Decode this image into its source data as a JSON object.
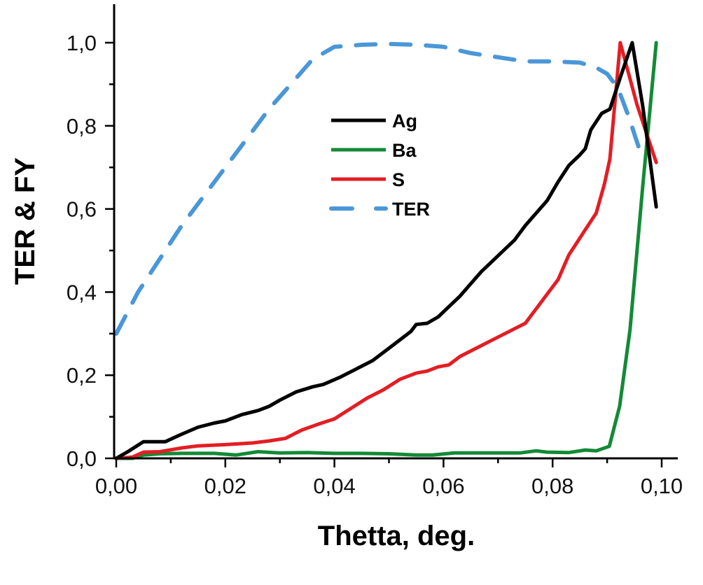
{
  "chart_data": {
    "type": "line",
    "title": "",
    "xlabel": "Thetta, deg.",
    "ylabel": "TER & FY",
    "xlim": [
      0,
      0.103
    ],
    "ylim": [
      0,
      1.093
    ],
    "grid": false,
    "legend_position": "upper-center",
    "x_ticks": [
      0,
      0.02,
      0.04,
      0.06,
      0.08,
      0.1
    ],
    "x_tick_labels": [
      "0,00",
      "0,02",
      "0,04",
      "0,06",
      "0,08",
      "0,10"
    ],
    "x_minor_ticks": [
      0.01,
      0.03,
      0.05,
      0.07,
      0.09
    ],
    "y_ticks": [
      0,
      0.2,
      0.4,
      0.6,
      0.8,
      1.0
    ],
    "y_tick_labels": [
      "0,0",
      "0,2",
      "0,4",
      "0,6",
      "0,8",
      "1,0"
    ],
    "y_minor_ticks": [
      0.1,
      0.3,
      0.5,
      0.7,
      0.9
    ],
    "series": [
      {
        "name": "Ag",
        "color": "#000000",
        "style": "solid",
        "x": [
          0,
          0.002,
          0.005,
          0.009,
          0.012,
          0.015,
          0.018,
          0.02,
          0.023,
          0.026,
          0.028,
          0.03,
          0.033,
          0.036,
          0.038,
          0.041,
          0.044,
          0.047,
          0.05,
          0.052,
          0.054,
          0.055,
          0.057,
          0.059,
          0.061,
          0.063,
          0.065,
          0.067,
          0.069,
          0.071,
          0.073,
          0.075,
          0.077,
          0.079,
          0.081,
          0.083,
          0.085,
          0.086,
          0.087,
          0.089,
          0.0905,
          0.0925,
          0.0946,
          0.0965,
          0.099
        ],
        "values": [
          0,
          0.015,
          0.04,
          0.04,
          0.058,
          0.075,
          0.085,
          0.09,
          0.105,
          0.115,
          0.125,
          0.14,
          0.16,
          0.172,
          0.178,
          0.195,
          0.215,
          0.235,
          0.265,
          0.285,
          0.305,
          0.322,
          0.325,
          0.34,
          0.365,
          0.39,
          0.42,
          0.45,
          0.475,
          0.5,
          0.525,
          0.56,
          0.59,
          0.62,
          0.665,
          0.705,
          0.73,
          0.745,
          0.79,
          0.83,
          0.84,
          0.92,
          1.0,
          0.85,
          0.605
        ]
      },
      {
        "name": "Ba",
        "color": "#138a36",
        "style": "solid",
        "x": [
          0,
          0.003,
          0.005,
          0.008,
          0.012,
          0.018,
          0.022,
          0.026,
          0.03,
          0.035,
          0.04,
          0.045,
          0.05,
          0.055,
          0.058,
          0.062,
          0.066,
          0.07,
          0.074,
          0.077,
          0.079,
          0.083,
          0.086,
          0.088,
          0.0904,
          0.0923,
          0.0942,
          0.0965,
          0.099
        ],
        "values": [
          0,
          0.0,
          0.008,
          0.011,
          0.012,
          0.012,
          0.008,
          0.016,
          0.013,
          0.014,
          0.012,
          0.012,
          0.011,
          0.008,
          0.008,
          0.013,
          0.013,
          0.013,
          0.013,
          0.018,
          0.015,
          0.014,
          0.02,
          0.018,
          0.029,
          0.126,
          0.31,
          0.65,
          1.0
        ]
      },
      {
        "name": "S",
        "color": "#e31e24",
        "style": "solid",
        "x": [
          0,
          0.003,
          0.005,
          0.008,
          0.012,
          0.015,
          0.02,
          0.025,
          0.028,
          0.031,
          0.034,
          0.037,
          0.04,
          0.043,
          0.046,
          0.049,
          0.052,
          0.055,
          0.057,
          0.059,
          0.061,
          0.063,
          0.066,
          0.069,
          0.072,
          0.075,
          0.077,
          0.079,
          0.081,
          0.083,
          0.084,
          0.086,
          0.088,
          0.0895,
          0.0905,
          0.0924,
          0.0955,
          0.099
        ],
        "values": [
          0,
          0.003,
          0.015,
          0.016,
          0.025,
          0.03,
          0.033,
          0.037,
          0.042,
          0.048,
          0.068,
          0.082,
          0.095,
          0.12,
          0.145,
          0.165,
          0.19,
          0.205,
          0.21,
          0.22,
          0.225,
          0.245,
          0.265,
          0.285,
          0.305,
          0.325,
          0.36,
          0.395,
          0.43,
          0.49,
          0.51,
          0.55,
          0.59,
          0.66,
          0.72,
          1.0,
          0.85,
          0.712
        ]
      },
      {
        "name": "TER",
        "color": "#4a97d8",
        "style": "dashed",
        "x": [
          0,
          0.004,
          0.008,
          0.012,
          0.016,
          0.02,
          0.024,
          0.028,
          0.032,
          0.036,
          0.04,
          0.045,
          0.05,
          0.055,
          0.06,
          0.065,
          0.07,
          0.075,
          0.08,
          0.085,
          0.088,
          0.09,
          0.092,
          0.094,
          0.0965
        ],
        "values": [
          0.3,
          0.4,
          0.48,
          0.56,
          0.63,
          0.7,
          0.77,
          0.84,
          0.9,
          0.96,
          0.99,
          0.995,
          0.997,
          0.995,
          0.99,
          0.975,
          0.965,
          0.955,
          0.955,
          0.952,
          0.94,
          0.925,
          0.89,
          0.82,
          0.72
        ]
      }
    ]
  }
}
